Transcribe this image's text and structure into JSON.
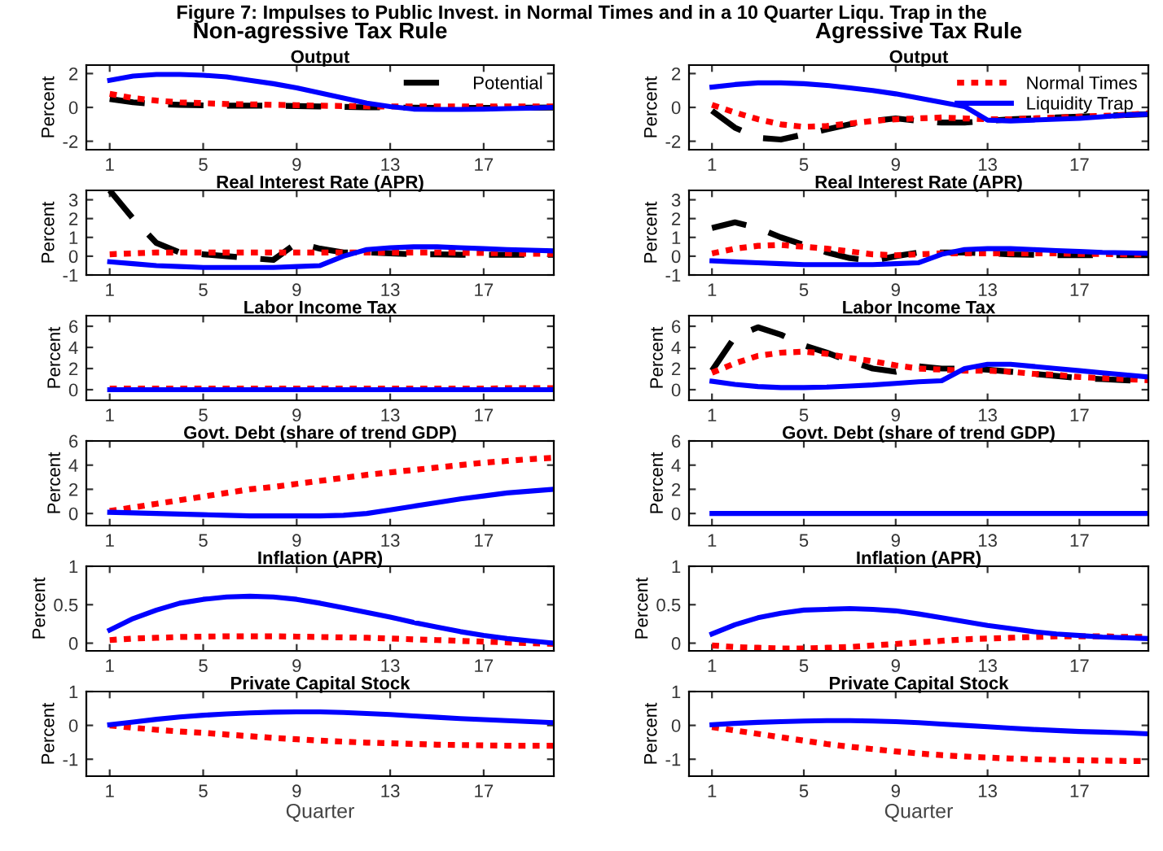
{
  "chart_data": [
    {
      "type": "line",
      "title": "Output",
      "subtitle": "Non-agressive Tax Rule",
      "annotations": [
        "Figure 7: Impulses to Public Invest. in Normal Times and in a 10 Quarter Liqu. Trap in the"
      ],
      "ylabel": "Percent",
      "x": [
        1,
        2,
        3,
        4,
        5,
        6,
        7,
        8,
        9,
        10,
        11,
        12,
        13,
        14,
        15,
        16,
        17,
        18,
        19,
        20
      ],
      "xlim": [
        0,
        20
      ],
      "xticks": [
        1,
        5,
        9,
        13,
        17
      ],
      "ylim": [
        -2.5,
        2.5
      ],
      "yticks": [
        -2,
        0,
        2
      ],
      "legend": "top right",
      "series": [
        {
          "name": "Potential",
          "color": "#000000",
          "line_style": "dashed",
          "values": [
            0.5,
            0.3,
            0.2,
            0.15,
            0.12,
            0.1,
            0.1,
            0.1,
            0.08,
            0.05,
            0.03,
            0.0,
            0.0,
            -0.02,
            -0.03,
            -0.03,
            -0.03,
            -0.02,
            -0.02,
            -0.01
          ]
        },
        {
          "color": "#ff0000",
          "line_style": "dotted",
          "values": [
            0.8,
            0.55,
            0.4,
            0.3,
            0.25,
            0.2,
            0.18,
            0.15,
            0.13,
            0.1,
            0.08,
            0.06,
            0.05,
            0.05,
            0.05,
            0.05,
            0.05,
            0.05,
            0.05,
            0.05
          ]
        },
        {
          "color": "#0000ff",
          "line_style": "solid",
          "values": [
            1.6,
            1.85,
            1.95,
            1.95,
            1.9,
            1.8,
            1.6,
            1.4,
            1.15,
            0.85,
            0.55,
            0.25,
            0.05,
            -0.1,
            -0.12,
            -0.12,
            -0.1,
            -0.07,
            -0.04,
            0.0
          ]
        }
      ]
    },
    {
      "type": "line",
      "title": "Output",
      "subtitle": "Agressive Tax Rule",
      "ylabel": "Percent",
      "x": [
        1,
        2,
        3,
        4,
        5,
        6,
        7,
        8,
        9,
        10,
        11,
        12,
        13,
        14,
        15,
        16,
        17,
        18,
        19,
        20
      ],
      "xlim": [
        0,
        20
      ],
      "xticks": [
        1,
        5,
        9,
        13,
        17
      ],
      "ylim": [
        -2.5,
        2.5
      ],
      "yticks": [
        -2,
        0,
        2
      ],
      "legend": "top right",
      "series": [
        {
          "color": "#000000",
          "line_style": "dashed",
          "values": [
            -0.2,
            -1.2,
            -1.8,
            -1.9,
            -1.6,
            -1.3,
            -1.0,
            -0.8,
            -0.65,
            -0.8,
            -0.9,
            -0.9,
            -0.8,
            -0.7,
            -0.65,
            -0.6,
            -0.55,
            -0.5,
            -0.45,
            -0.4
          ]
        },
        {
          "name": "Normal Times",
          "color": "#ff0000",
          "line_style": "dotted",
          "values": [
            0.15,
            -0.3,
            -0.7,
            -1.0,
            -1.15,
            -1.1,
            -0.95,
            -0.8,
            -0.7,
            -0.65,
            -0.6,
            -0.65,
            -0.7,
            -0.7,
            -0.65,
            -0.6,
            -0.55,
            -0.5,
            -0.45,
            -0.35
          ]
        },
        {
          "name": "Liquidity Trap",
          "color": "#0000ff",
          "line_style": "solid",
          "values": [
            1.2,
            1.35,
            1.45,
            1.45,
            1.4,
            1.3,
            1.15,
            1.0,
            0.8,
            0.55,
            0.3,
            0.05,
            -0.75,
            -0.8,
            -0.75,
            -0.7,
            -0.65,
            -0.55,
            -0.45,
            -0.4
          ]
        }
      ]
    },
    {
      "type": "line",
      "title": "Real Interest Rate (APR)",
      "ylabel": "Percent",
      "x": [
        1,
        2,
        3,
        4,
        5,
        6,
        7,
        8,
        9,
        10,
        11,
        12,
        13,
        14,
        15,
        16,
        17,
        18,
        19,
        20
      ],
      "xlim": [
        0,
        20
      ],
      "xticks": [
        1,
        5,
        9,
        13,
        17
      ],
      "ylim": [
        -1,
        3.5
      ],
      "yticks": [
        -1,
        0,
        1,
        2,
        3
      ],
      "series": [
        {
          "color": "#000000",
          "line_style": "dashed",
          "values": [
            3.5,
            2.0,
            0.7,
            0.2,
            0.1,
            0.0,
            -0.1,
            -0.2,
            0.7,
            0.4,
            0.2,
            0.2,
            0.15,
            0.1,
            0.1,
            0.08,
            0.08,
            0.08,
            0.08,
            0.08
          ]
        },
        {
          "color": "#ff0000",
          "line_style": "dotted",
          "values": [
            0.1,
            0.15,
            0.2,
            0.2,
            0.2,
            0.2,
            0.2,
            0.2,
            0.2,
            0.2,
            0.2,
            0.2,
            0.2,
            0.2,
            0.2,
            0.18,
            0.17,
            0.15,
            0.13,
            0.12
          ]
        },
        {
          "color": "#0000ff",
          "line_style": "solid",
          "values": [
            -0.3,
            -0.4,
            -0.5,
            -0.55,
            -0.6,
            -0.6,
            -0.6,
            -0.6,
            -0.55,
            -0.5,
            0.0,
            0.35,
            0.45,
            0.5,
            0.5,
            0.45,
            0.4,
            0.35,
            0.32,
            0.28
          ]
        }
      ]
    },
    {
      "type": "line",
      "title": "Real Interest Rate (APR)",
      "ylabel": "Percent",
      "x": [
        1,
        2,
        3,
        4,
        5,
        6,
        7,
        8,
        9,
        10,
        11,
        12,
        13,
        14,
        15,
        16,
        17,
        18,
        19,
        20
      ],
      "xlim": [
        0,
        20
      ],
      "xticks": [
        1,
        5,
        9,
        13,
        17
      ],
      "ylim": [
        -1,
        3.5
      ],
      "yticks": [
        -1,
        0,
        1,
        2,
        3
      ],
      "series": [
        {
          "color": "#000000",
          "line_style": "dashed",
          "values": [
            1.5,
            1.8,
            1.5,
            1.0,
            0.6,
            0.2,
            -0.1,
            -0.25,
            0.0,
            0.2,
            0.2,
            0.2,
            0.15,
            0.1,
            0.08,
            0.05,
            0.05,
            0.05,
            0.05,
            0.05
          ]
        },
        {
          "color": "#ff0000",
          "line_style": "dotted",
          "values": [
            0.15,
            0.4,
            0.55,
            0.6,
            0.5,
            0.4,
            0.25,
            0.1,
            0.05,
            0.1,
            0.15,
            0.15,
            0.15,
            0.15,
            0.15,
            0.15,
            0.12,
            0.12,
            0.1,
            0.1
          ]
        },
        {
          "color": "#0000ff",
          "line_style": "solid",
          "values": [
            -0.25,
            -0.3,
            -0.35,
            -0.4,
            -0.45,
            -0.45,
            -0.45,
            -0.45,
            -0.4,
            -0.35,
            0.1,
            0.35,
            0.4,
            0.4,
            0.35,
            0.3,
            0.25,
            0.2,
            0.18,
            0.15
          ]
        }
      ]
    },
    {
      "type": "line",
      "title": "Labor Income Tax",
      "ylabel": "Percent",
      "x": [
        1,
        2,
        3,
        4,
        5,
        6,
        7,
        8,
        9,
        10,
        11,
        12,
        13,
        14,
        15,
        16,
        17,
        18,
        19,
        20
      ],
      "xlim": [
        0,
        20
      ],
      "xticks": [
        1,
        5,
        9,
        13,
        17
      ],
      "ylim": [
        -1,
        7
      ],
      "yticks": [
        0,
        2,
        4,
        6
      ],
      "series": [
        {
          "color": "#ff0000",
          "line_style": "dotted",
          "values": [
            0.1,
            0.1,
            0.1,
            0.1,
            0.1,
            0.1,
            0.1,
            0.1,
            0.1,
            0.1,
            0.1,
            0.1,
            0.1,
            0.1,
            0.1,
            0.1,
            0.1,
            0.15,
            0.15,
            0.15
          ]
        },
        {
          "color": "#0000ff",
          "line_style": "solid",
          "values": [
            0,
            0,
            0,
            0,
            0,
            0,
            0,
            0,
            0,
            0,
            0,
            0,
            0,
            0,
            0,
            0,
            0,
            0,
            0,
            0
          ]
        }
      ]
    },
    {
      "type": "line",
      "title": "Labor Income Tax",
      "ylabel": "Percent",
      "x": [
        1,
        2,
        3,
        4,
        5,
        6,
        7,
        8,
        9,
        10,
        11,
        12,
        13,
        14,
        15,
        16,
        17,
        18,
        19,
        20
      ],
      "xlim": [
        0,
        20
      ],
      "xticks": [
        1,
        5,
        9,
        13,
        17
      ],
      "ylim": [
        -1,
        7
      ],
      "yticks": [
        0,
        2,
        4,
        6
      ],
      "series": [
        {
          "color": "#000000",
          "line_style": "dashed",
          "values": [
            1.8,
            5.0,
            5.9,
            5.2,
            4.2,
            3.5,
            2.7,
            2.0,
            1.7,
            2.2,
            2.0,
            2.0,
            1.9,
            1.7,
            1.5,
            1.3,
            1.1,
            1.0,
            0.9,
            0.8
          ]
        },
        {
          "color": "#ff0000",
          "line_style": "dotted",
          "values": [
            1.6,
            2.5,
            3.2,
            3.5,
            3.6,
            3.4,
            3.0,
            2.7,
            2.3,
            2.0,
            1.9,
            1.8,
            1.8,
            1.7,
            1.5,
            1.4,
            1.2,
            1.1,
            1.0,
            0.9
          ]
        },
        {
          "color": "#0000ff",
          "line_style": "solid",
          "values": [
            0.8,
            0.5,
            0.3,
            0.2,
            0.2,
            0.25,
            0.35,
            0.45,
            0.6,
            0.75,
            0.85,
            2.0,
            2.4,
            2.4,
            2.2,
            2.0,
            1.8,
            1.6,
            1.4,
            1.2
          ]
        }
      ]
    },
    {
      "type": "line",
      "title": "Govt. Debt (share of trend GDP)",
      "ylabel": "Percent",
      "x": [
        1,
        2,
        3,
        4,
        5,
        6,
        7,
        8,
        9,
        10,
        11,
        12,
        13,
        14,
        15,
        16,
        17,
        18,
        19,
        20
      ],
      "xlim": [
        0,
        20
      ],
      "xticks": [
        1,
        5,
        9,
        13,
        17
      ],
      "ylim": [
        -1,
        6
      ],
      "yticks": [
        0,
        2,
        4,
        6
      ],
      "series": [
        {
          "color": "#ff0000",
          "line_style": "dotted",
          "values": [
            0.2,
            0.5,
            0.8,
            1.1,
            1.4,
            1.7,
            2.0,
            2.2,
            2.45,
            2.7,
            2.95,
            3.2,
            3.4,
            3.6,
            3.8,
            4.0,
            4.2,
            4.35,
            4.5,
            4.6
          ]
        },
        {
          "color": "#0000ff",
          "line_style": "solid",
          "values": [
            0.1,
            0.05,
            0.0,
            -0.05,
            -0.1,
            -0.15,
            -0.2,
            -0.2,
            -0.2,
            -0.2,
            -0.15,
            0.0,
            0.3,
            0.6,
            0.9,
            1.2,
            1.45,
            1.7,
            1.85,
            2.0
          ]
        }
      ]
    },
    {
      "type": "line",
      "title": "Govt. Debt (share of trend GDP)",
      "ylabel": "Percent",
      "x": [
        1,
        2,
        3,
        4,
        5,
        6,
        7,
        8,
        9,
        10,
        11,
        12,
        13,
        14,
        15,
        16,
        17,
        18,
        19,
        20
      ],
      "xlim": [
        0,
        20
      ],
      "xticks": [
        1,
        5,
        9,
        13,
        17
      ],
      "ylim": [
        -1,
        6
      ],
      "yticks": [
        0,
        2,
        4,
        6
      ],
      "series": [
        {
          "color": "#0000ff",
          "line_style": "solid",
          "values": [
            0,
            0,
            0,
            0,
            0,
            0,
            0,
            0,
            0,
            0,
            0,
            0,
            0,
            0,
            0,
            0,
            0,
            0,
            0,
            0
          ]
        }
      ]
    },
    {
      "type": "line",
      "title": "Inflation (APR)",
      "ylabel": "Percent",
      "x": [
        1,
        2,
        3,
        4,
        5,
        6,
        7,
        8,
        9,
        10,
        11,
        12,
        13,
        14,
        15,
        16,
        17,
        18,
        19,
        20
      ],
      "xlim": [
        0,
        20
      ],
      "xticks": [
        1,
        5,
        9,
        13,
        17
      ],
      "ylim": [
        -0.1,
        1
      ],
      "yticks": [
        0,
        0.5,
        1
      ],
      "series": [
        {
          "color": "#ff0000",
          "line_style": "dotted",
          "values": [
            0.04,
            0.06,
            0.07,
            0.08,
            0.085,
            0.09,
            0.09,
            0.09,
            0.085,
            0.08,
            0.075,
            0.07,
            0.06,
            0.05,
            0.04,
            0.03,
            0.02,
            0.01,
            0.0,
            -0.01
          ]
        },
        {
          "color": "#0000ff",
          "line_style": "solid",
          "values": [
            0.17,
            0.32,
            0.43,
            0.52,
            0.57,
            0.6,
            0.61,
            0.6,
            0.57,
            0.52,
            0.46,
            0.4,
            0.34,
            0.27,
            0.21,
            0.15,
            0.1,
            0.06,
            0.03,
            0.0
          ]
        }
      ]
    },
    {
      "type": "line",
      "title": "Inflation (APR)",
      "ylabel": "Percent",
      "x": [
        1,
        2,
        3,
        4,
        5,
        6,
        7,
        8,
        9,
        10,
        11,
        12,
        13,
        14,
        15,
        16,
        17,
        18,
        19,
        20
      ],
      "xlim": [
        0,
        20
      ],
      "xticks": [
        1,
        5,
        9,
        13,
        17
      ],
      "ylim": [
        -0.1,
        1
      ],
      "yticks": [
        0,
        0.5,
        1
      ],
      "series": [
        {
          "color": "#ff0000",
          "line_style": "dotted",
          "values": [
            -0.03,
            -0.05,
            -0.06,
            -0.07,
            -0.07,
            -0.06,
            -0.05,
            -0.03,
            -0.01,
            0.01,
            0.03,
            0.05,
            0.06,
            0.07,
            0.08,
            0.09,
            0.09,
            0.09,
            0.08,
            0.08
          ]
        },
        {
          "color": "#0000ff",
          "line_style": "solid",
          "values": [
            0.12,
            0.24,
            0.33,
            0.39,
            0.43,
            0.44,
            0.45,
            0.44,
            0.42,
            0.38,
            0.33,
            0.28,
            0.23,
            0.19,
            0.15,
            0.12,
            0.1,
            0.08,
            0.07,
            0.06
          ]
        }
      ]
    },
    {
      "type": "line",
      "title": "Private Capital Stock",
      "ylabel": "Percent",
      "xlabel": "Quarter",
      "x": [
        1,
        2,
        3,
        4,
        5,
        6,
        7,
        8,
        9,
        10,
        11,
        12,
        13,
        14,
        15,
        16,
        17,
        18,
        19,
        20
      ],
      "xlim": [
        0,
        20
      ],
      "xticks": [
        1,
        5,
        9,
        13,
        17
      ],
      "ylim": [
        -1.5,
        1
      ],
      "yticks": [
        -1,
        0,
        1
      ],
      "series": [
        {
          "color": "#ff0000",
          "line_style": "dotted",
          "values": [
            0.0,
            -0.07,
            -0.13,
            -0.18,
            -0.22,
            -0.27,
            -0.32,
            -0.37,
            -0.41,
            -0.45,
            -0.48,
            -0.51,
            -0.53,
            -0.55,
            -0.57,
            -0.58,
            -0.59,
            -0.6,
            -0.6,
            -0.6
          ]
        },
        {
          "color": "#0000ff",
          "line_style": "solid",
          "values": [
            0.02,
            0.1,
            0.18,
            0.25,
            0.3,
            0.34,
            0.37,
            0.39,
            0.4,
            0.4,
            0.38,
            0.35,
            0.32,
            0.28,
            0.24,
            0.2,
            0.17,
            0.14,
            0.11,
            0.08
          ]
        }
      ]
    },
    {
      "type": "line",
      "title": "Private Capital Stock",
      "ylabel": "Percent",
      "xlabel": "Quarter",
      "x": [
        1,
        2,
        3,
        4,
        5,
        6,
        7,
        8,
        9,
        10,
        11,
        12,
        13,
        14,
        15,
        16,
        17,
        18,
        19,
        20
      ],
      "xlim": [
        0,
        20
      ],
      "xticks": [
        1,
        5,
        9,
        13,
        17
      ],
      "ylim": [
        -1.5,
        1
      ],
      "yticks": [
        -1,
        0,
        1
      ],
      "series": [
        {
          "color": "#ff0000",
          "line_style": "dotted",
          "values": [
            -0.05,
            -0.15,
            -0.25,
            -0.35,
            -0.45,
            -0.55,
            -0.63,
            -0.7,
            -0.77,
            -0.83,
            -0.88,
            -0.92,
            -0.95,
            -0.98,
            -1.0,
            -1.02,
            -1.03,
            -1.04,
            -1.05,
            -1.05
          ]
        },
        {
          "color": "#0000ff",
          "line_style": "solid",
          "values": [
            0.02,
            0.06,
            0.09,
            0.11,
            0.13,
            0.14,
            0.14,
            0.13,
            0.11,
            0.08,
            0.04,
            0.0,
            -0.04,
            -0.08,
            -0.12,
            -0.15,
            -0.18,
            -0.2,
            -0.22,
            -0.25
          ]
        }
      ]
    }
  ]
}
